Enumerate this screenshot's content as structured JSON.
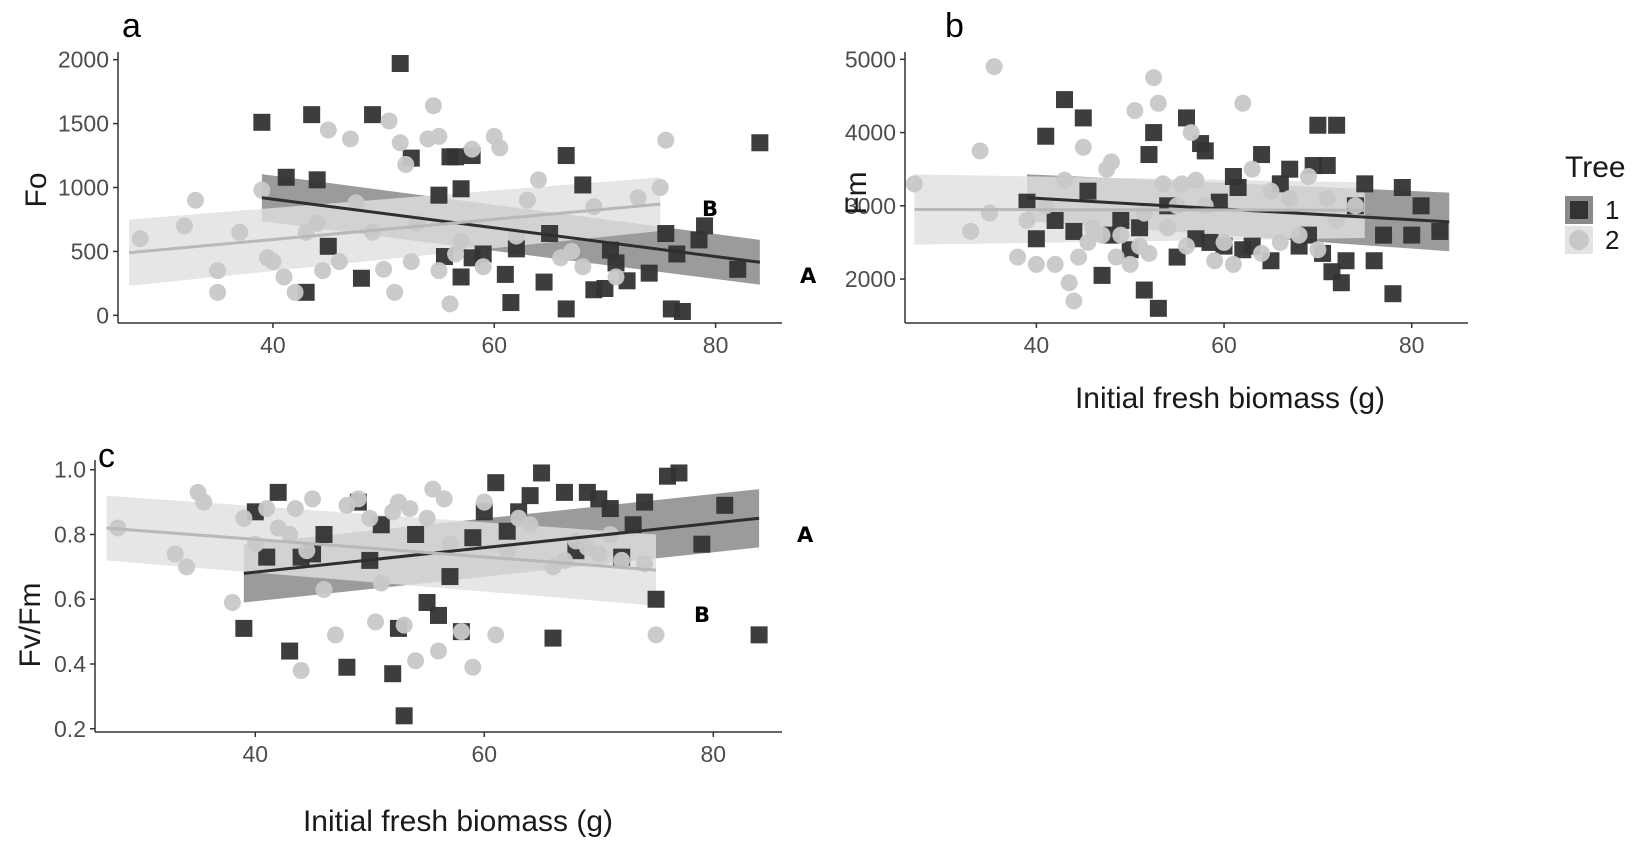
{
  "colors": {
    "tree1": "#333333",
    "tree2": "#c8c8c8",
    "band1": "#7a7a7a",
    "band2": "#e0e0e0",
    "axis": "#333333",
    "tick_text": "#4d4d4d"
  },
  "legend": {
    "title": "Tree",
    "placement": "right",
    "entries": [
      {
        "label": "1",
        "marker": "square"
      },
      {
        "label": "2",
        "marker": "circle"
      }
    ]
  },
  "chart_data": [
    {
      "panel": "a",
      "type": "scatter",
      "ylabel": "Fo",
      "xlabel": "",
      "xlim": [
        26,
        86
      ],
      "ylim": [
        -60,
        2060
      ],
      "xticks": [
        40,
        60,
        80
      ],
      "yticks": [
        0,
        500,
        1000,
        1500,
        2000
      ],
      "grid": false,
      "series": [
        {
          "name": "1",
          "marker": "square",
          "fit_label": "A",
          "fit": {
            "x": [
              39,
              84
            ],
            "y": [
              920,
              415
            ]
          },
          "band_halfwidth": [
            185,
            175
          ],
          "x": [
            39,
            41.2,
            43,
            43.5,
            44,
            45,
            48,
            49,
            51.5,
            52.5,
            55,
            55.5,
            56,
            56.5,
            57,
            57,
            58,
            58,
            59,
            61,
            61.5,
            62,
            64.5,
            65,
            66.5,
            66.5,
            68,
            69,
            70,
            70.5,
            71,
            72,
            74,
            75.5,
            76,
            76.5,
            77,
            78.5,
            79,
            82,
            84
          ],
          "y": [
            1510,
            1080,
            180,
            1570,
            1060,
            540,
            290,
            1570,
            1970,
            1230,
            940,
            460,
            1240,
            1240,
            300,
            990,
            1250,
            450,
            480,
            320,
            100,
            520,
            260,
            640,
            50,
            1250,
            1020,
            200,
            210,
            510,
            410,
            270,
            330,
            640,
            50,
            480,
            30,
            590,
            700,
            360,
            1350
          ]
        },
        {
          "name": "2",
          "marker": "circle",
          "fit_label": "B",
          "fit": {
            "x": [
              27,
              75
            ],
            "y": [
              490,
              870
            ]
          },
          "band_halfwidth": [
            260,
            210
          ],
          "x": [
            28,
            32,
            33,
            35,
            35,
            37,
            39,
            39.5,
            40,
            41,
            42,
            43,
            44,
            44.5,
            45,
            46,
            47,
            47.5,
            49,
            50,
            50.5,
            51,
            51.5,
            52,
            52.5,
            53,
            54,
            54.5,
            55,
            55,
            56,
            56.5,
            57,
            58,
            59,
            60,
            60.5,
            62,
            63,
            64,
            66,
            67,
            68,
            69,
            71,
            73,
            75,
            75.5
          ],
          "y": [
            600,
            700,
            900,
            350,
            180,
            650,
            980,
            450,
            420,
            300,
            180,
            650,
            720,
            350,
            1450,
            420,
            1380,
            880,
            650,
            360,
            1520,
            180,
            1350,
            1180,
            420,
            720,
            1380,
            1640,
            1400,
            350,
            90,
            480,
            580,
            1300,
            380,
            1400,
            1310,
            620,
            900,
            1060,
            450,
            500,
            380,
            850,
            300,
            920,
            1000,
            1370
          ]
        }
      ]
    },
    {
      "panel": "b",
      "type": "scatter",
      "ylabel": "Fm",
      "xlabel": "Initial fresh biomass (g)",
      "xlim": [
        26,
        86
      ],
      "ylim": [
        1400,
        5100
      ],
      "xticks": [
        40,
        60,
        80
      ],
      "yticks": [
        2000,
        3000,
        4000,
        5000
      ],
      "grid": false,
      "series": [
        {
          "name": "1",
          "marker": "square",
          "fit_label": "",
          "fit": {
            "x": [
              39,
              84
            ],
            "y": [
              3110,
              2780
            ]
          },
          "band_halfwidth": [
            320,
            400
          ],
          "x": [
            39,
            40,
            41,
            42,
            43,
            44,
            45,
            45.5,
            47,
            48,
            49,
            50,
            51,
            51.5,
            52,
            52.5,
            53,
            54,
            55,
            56,
            57,
            57.5,
            58,
            58.5,
            59.5,
            60,
            61,
            61.5,
            62,
            63,
            64,
            65,
            66,
            67,
            68,
            69,
            69.5,
            70,
            70.5,
            71,
            71.5,
            72,
            72.5,
            73,
            74,
            75,
            76,
            77,
            78,
            79,
            80,
            81,
            83
          ],
          "y": [
            3050,
            2550,
            3950,
            2800,
            4450,
            2650,
            4200,
            3200,
            2050,
            2600,
            2800,
            2400,
            2700,
            1850,
            3700,
            4000,
            1600,
            3000,
            2300,
            4200,
            2550,
            3850,
            3750,
            2500,
            3050,
            2450,
            3400,
            3250,
            2400,
            2450,
            3700,
            2250,
            3300,
            3500,
            2450,
            2600,
            3550,
            4100,
            2350,
            3550,
            2100,
            4100,
            1950,
            2250,
            3000,
            3300,
            2250,
            2600,
            1800,
            3250,
            2600,
            3000,
            2650
          ]
        },
        {
          "name": "2",
          "marker": "circle",
          "fit_label": "",
          "fit": {
            "x": [
              27,
              75
            ],
            "y": [
              2950,
              2940
            ]
          },
          "band_halfwidth": [
            480,
            380
          ],
          "x": [
            27,
            33,
            34,
            35,
            35.5,
            38,
            39,
            40,
            41,
            42,
            43,
            43.5,
            44,
            44.5,
            45,
            45.5,
            46,
            47,
            47.5,
            48,
            48.5,
            49,
            50,
            50.5,
            51,
            51.5,
            52,
            52.5,
            53,
            53.5,
            54,
            55,
            55.5,
            56,
            56.5,
            57,
            58,
            59,
            60,
            61,
            62,
            63,
            64,
            65,
            66,
            67,
            68,
            69,
            70,
            71,
            72,
            74
          ],
          "y": [
            3300,
            2650,
            3750,
            2900,
            4900,
            2300,
            2800,
            2200,
            3000,
            2200,
            3350,
            1950,
            1700,
            2300,
            3800,
            2500,
            2700,
            2600,
            3500,
            3600,
            2300,
            2600,
            2200,
            4300,
            2450,
            2900,
            2350,
            4750,
            4400,
            3300,
            2700,
            3000,
            3300,
            2450,
            4000,
            3350,
            3000,
            2250,
            2500,
            2200,
            4400,
            3500,
            2350,
            3200,
            2500,
            3100,
            2600,
            3400,
            2400,
            3100,
            2800,
            3000
          ]
        }
      ]
    },
    {
      "panel": "c",
      "type": "scatter",
      "ylabel": "Fv/Fm",
      "xlabel": "Initial fresh biomass (g)",
      "xlim": [
        26,
        86
      ],
      "ylim": [
        0.19,
        1.03
      ],
      "xticks": [
        40,
        60,
        80
      ],
      "yticks": [
        0.2,
        0.4,
        0.6,
        0.8,
        1.0
      ],
      "ytick_labels": [
        "0.2",
        "0.4",
        "0.6",
        "0.8",
        "1.0"
      ],
      "grid": false,
      "series": [
        {
          "name": "1",
          "marker": "square",
          "fit_label": "A",
          "fit": {
            "x": [
              39,
              84
            ],
            "y": [
              0.68,
              0.85
            ]
          },
          "band_halfwidth": [
            0.09,
            0.09
          ],
          "x": [
            39,
            40,
            41,
            42,
            43,
            44,
            45,
            46,
            48,
            49,
            50,
            51,
            52,
            52.5,
            53,
            54,
            55,
            56,
            57,
            58,
            59,
            60,
            61,
            62,
            63,
            64,
            65,
            66,
            67,
            68,
            69,
            70,
            71,
            72,
            73,
            74,
            75,
            76,
            77,
            79,
            81,
            84
          ],
          "y": [
            0.51,
            0.87,
            0.73,
            0.93,
            0.44,
            0.73,
            0.74,
            0.8,
            0.39,
            0.9,
            0.72,
            0.83,
            0.37,
            0.51,
            0.24,
            0.8,
            0.59,
            0.55,
            0.67,
            0.5,
            0.79,
            0.87,
            0.96,
            0.81,
            0.87,
            0.92,
            0.99,
            0.48,
            0.93,
            0.75,
            0.93,
            0.91,
            0.88,
            0.73,
            0.83,
            0.9,
            0.6,
            0.98,
            0.99,
            0.77,
            0.89,
            0.49
          ]
        },
        {
          "name": "2",
          "marker": "circle",
          "fit_label": "B",
          "fit": {
            "x": [
              27,
              75
            ],
            "y": [
              0.82,
              0.69
            ]
          },
          "band_halfwidth": [
            0.1,
            0.11
          ],
          "x": [
            28,
            33,
            34,
            35,
            35.5,
            38,
            39,
            40,
            41,
            42,
            43,
            43.5,
            44,
            44.5,
            45,
            46,
            47,
            48,
            49,
            50,
            50.5,
            51,
            52,
            52.5,
            53,
            53.5,
            54,
            55,
            55.5,
            56,
            56.5,
            57,
            58,
            59,
            60,
            61,
            62,
            63,
            64,
            66,
            67,
            68,
            69,
            70,
            71,
            72,
            74,
            75
          ],
          "y": [
            0.82,
            0.74,
            0.7,
            0.93,
            0.9,
            0.59,
            0.85,
            0.77,
            0.88,
            0.82,
            0.8,
            0.88,
            0.38,
            0.75,
            0.91,
            0.63,
            0.49,
            0.89,
            0.91,
            0.85,
            0.53,
            0.65,
            0.87,
            0.9,
            0.52,
            0.88,
            0.41,
            0.85,
            0.94,
            0.44,
            0.91,
            0.77,
            0.5,
            0.39,
            0.9,
            0.49,
            0.75,
            0.85,
            0.83,
            0.7,
            0.72,
            0.78,
            0.76,
            0.74,
            0.8,
            0.72,
            0.71,
            0.49
          ]
        }
      ]
    }
  ],
  "annotations": {
    "panel_tags": [
      "a",
      "b",
      "c"
    ]
  }
}
